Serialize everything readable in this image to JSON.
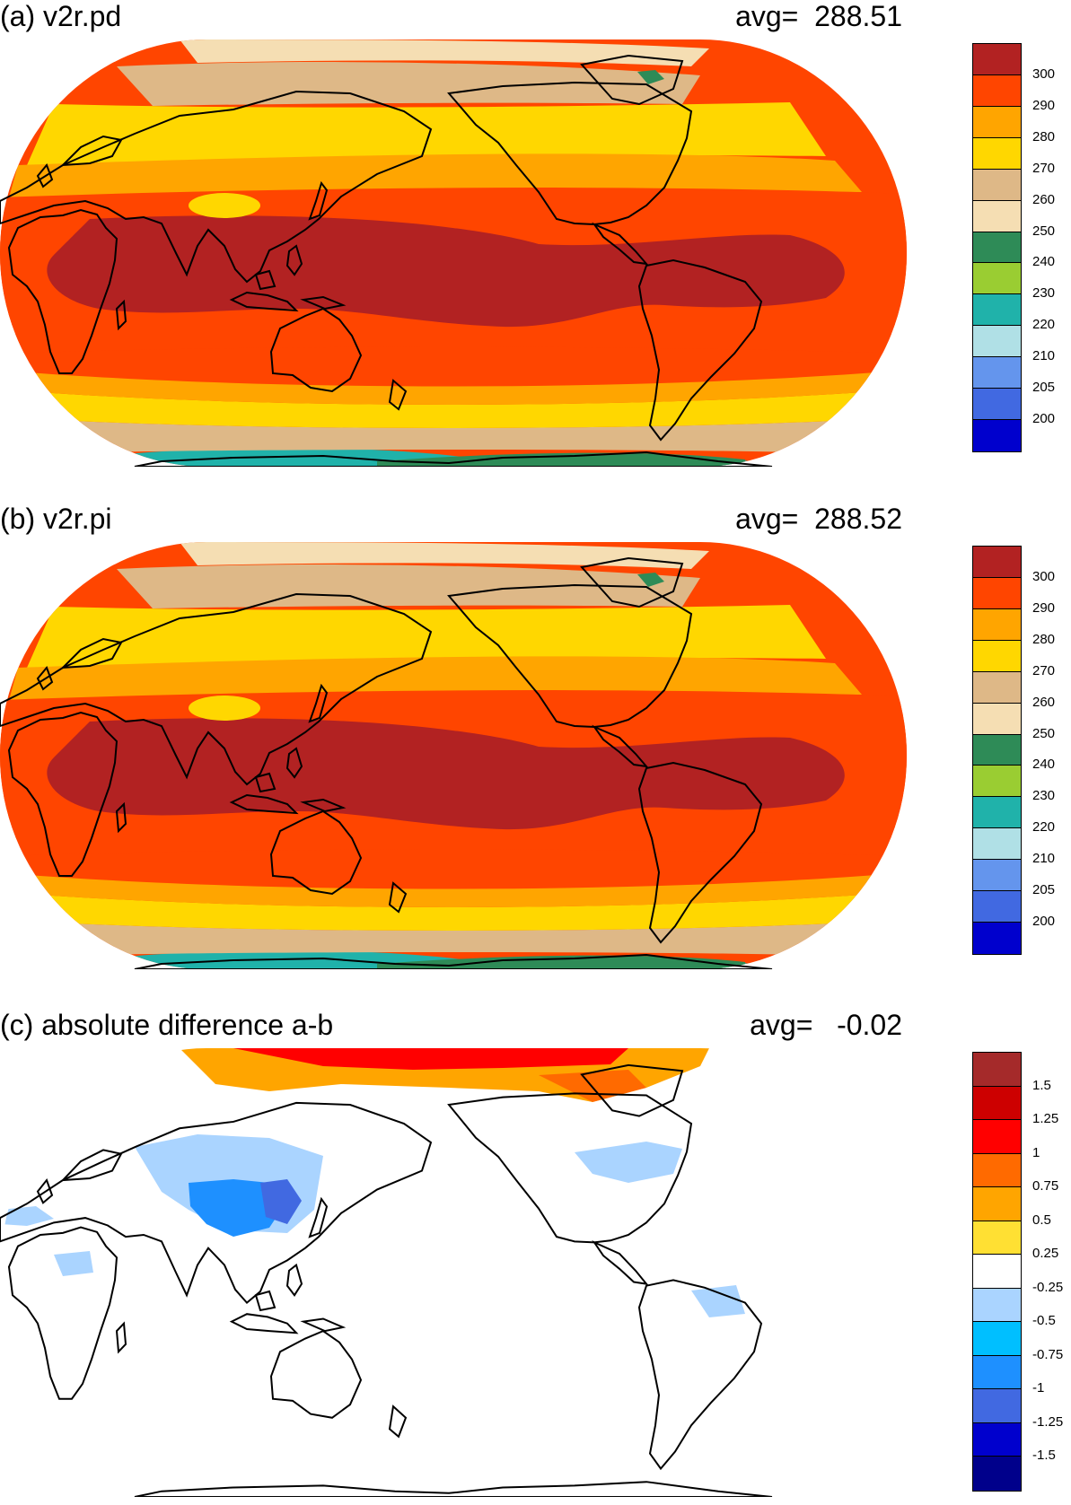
{
  "panels": [
    {
      "title": "(a) v2r.pd",
      "avg_text": "avg=  288.51",
      "kind": "abs",
      "colorbar": {
        "tick_labels": [
          "300",
          "290",
          "280",
          "270",
          "260",
          "250",
          "240",
          "230",
          "220",
          "210",
          "205",
          "200"
        ],
        "colors": [
          "#b22222",
          "#ff4500",
          "#ffa500",
          "#ffd700",
          "#deb887",
          "#f5deb3",
          "#2e8b57",
          "#9acd32",
          "#20b2aa",
          "#b0e0e6",
          "#6495ed",
          "#4169e1",
          "#0000cd"
        ]
      }
    },
    {
      "title": "(b) v2r.pi",
      "avg_text": "avg=  288.52",
      "kind": "abs",
      "colorbar": {
        "tick_labels": [
          "300",
          "290",
          "280",
          "270",
          "260",
          "250",
          "240",
          "230",
          "220",
          "210",
          "205",
          "200"
        ],
        "colors": [
          "#b22222",
          "#ff4500",
          "#ffa500",
          "#ffd700",
          "#deb887",
          "#f5deb3",
          "#2e8b57",
          "#9acd32",
          "#20b2aa",
          "#b0e0e6",
          "#6495ed",
          "#4169e1",
          "#0000cd"
        ]
      }
    },
    {
      "title": "(c) absolute difference a-b",
      "avg_text": "avg=   -0.02",
      "kind": "diff",
      "colorbar": {
        "tick_labels": [
          "1.5",
          "1.25",
          "1",
          "0.75",
          "0.5",
          "0.25",
          "-0.25",
          "-0.5",
          "-0.75",
          "-1",
          "-1.25",
          "-1.5"
        ],
        "colors": [
          "#a52a2a",
          "#cd0000",
          "#ff0000",
          "#ff6a00",
          "#ffa500",
          "#ffe033",
          "#ffffff",
          "#aad4ff",
          "#00bfff",
          "#1e90ff",
          "#4169e1",
          "#0000cd",
          "#00008b"
        ]
      }
    }
  ]
}
